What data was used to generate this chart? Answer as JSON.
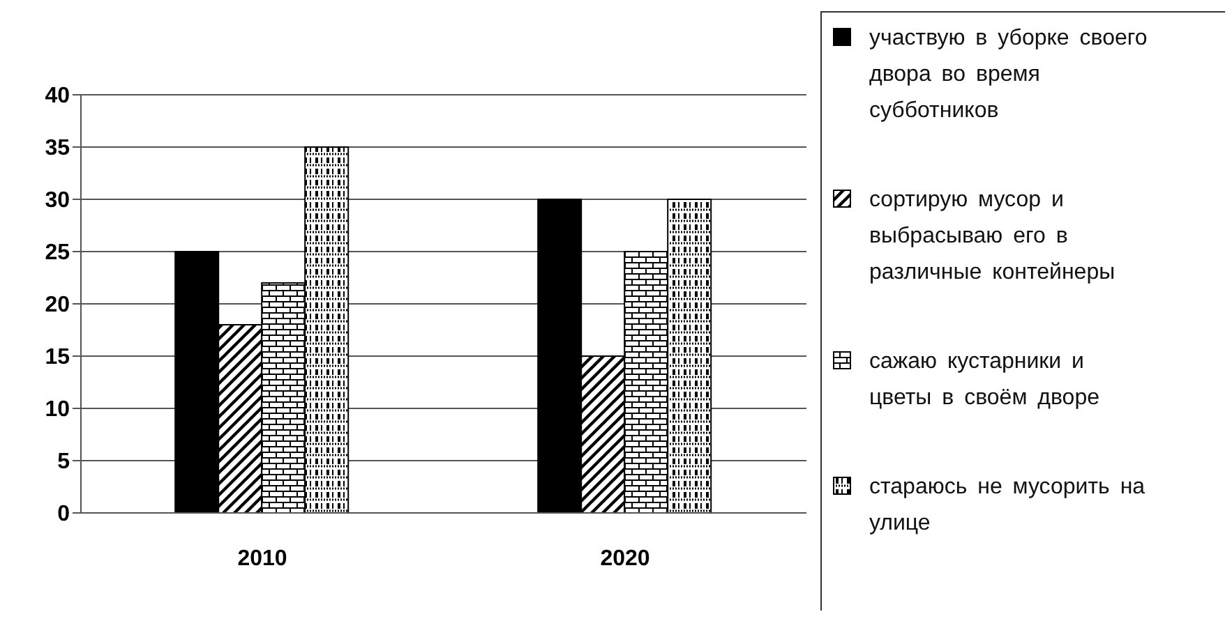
{
  "chart_data": {
    "type": "bar",
    "categories": [
      "2010",
      "2020"
    ],
    "series": [
      {
        "name": "участвую в уборке своего двора во время субботников",
        "color": "#000000",
        "values": [
          25,
          30
        ]
      },
      {
        "name": "сортирую мусор и выбрасываю его в различные контейнеры",
        "color": "#000000",
        "values": [
          18,
          15
        ]
      },
      {
        "name": "сажаю кустарники и цветы в своём дворе",
        "color": "#000000",
        "values": [
          22,
          25
        ]
      },
      {
        "name": "стараюсь не мусорить на улице",
        "color": "#000000",
        "values": [
          35,
          30
        ]
      }
    ],
    "ylim": [
      0,
      40
    ],
    "yticks": [
      0,
      5,
      10,
      15,
      20,
      25,
      30,
      35,
      40
    ],
    "grid": "y",
    "legend": "right"
  }
}
